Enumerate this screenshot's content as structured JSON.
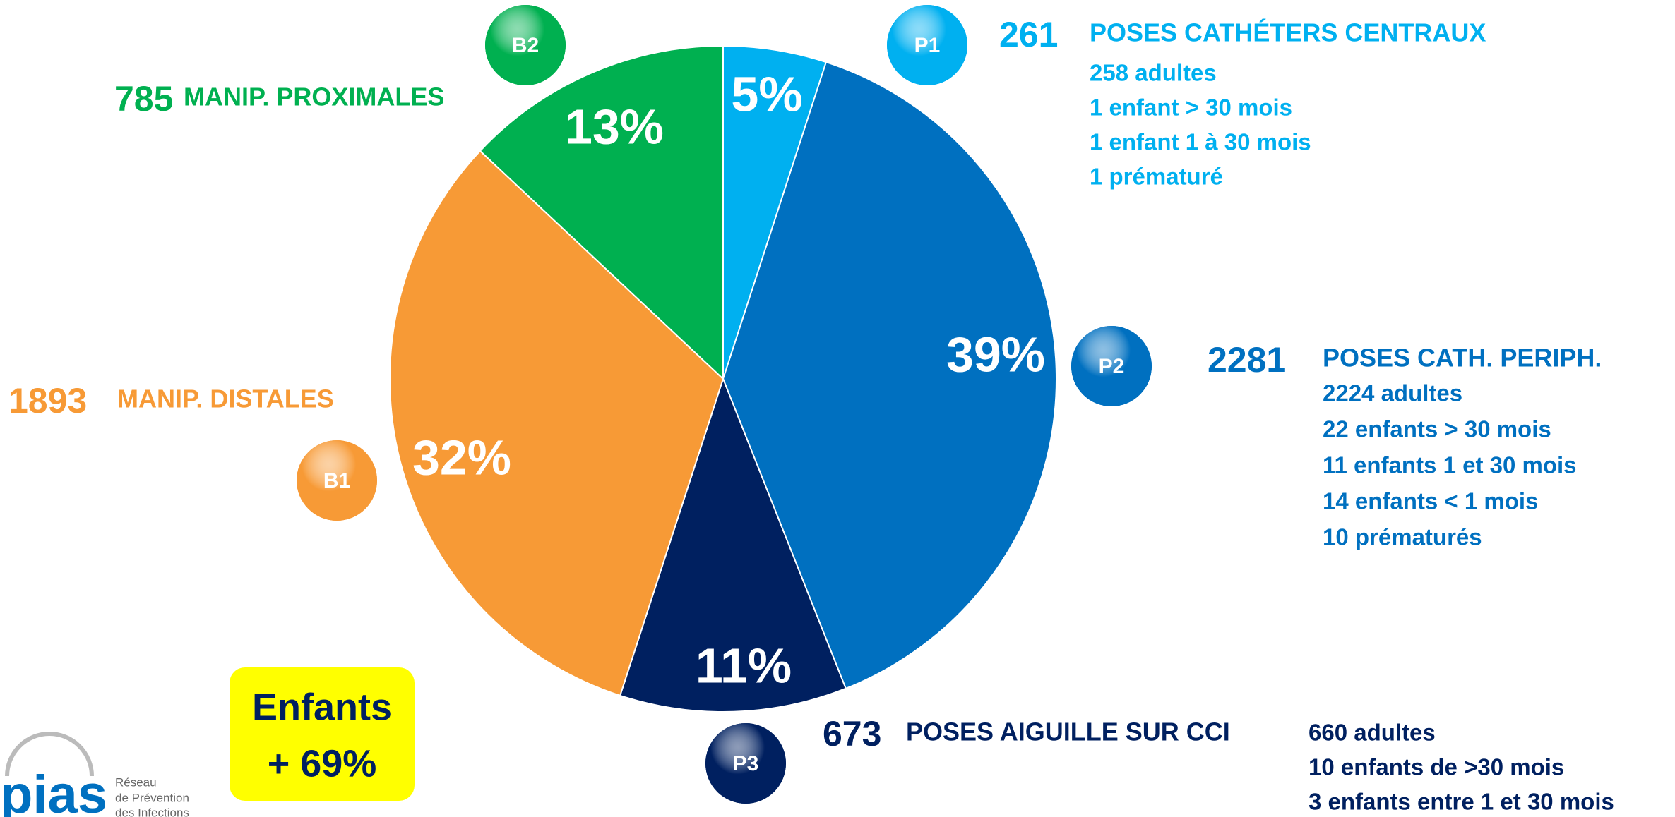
{
  "chart_data": {
    "type": "pie",
    "categories": [
      "P1",
      "P2",
      "P3",
      "B1",
      "B2"
    ],
    "values": [
      5,
      39,
      11,
      32,
      13
    ],
    "value_labels": [
      "5%",
      "39%",
      "11%",
      "32%",
      "13%"
    ],
    "colors": [
      "#00b0f0",
      "#0070c0",
      "#002060",
      "#f79a36",
      "#00b050"
    ]
  },
  "annotations": [
    {
      "count": 261,
      "title": "POSES CATHÉTERS CENTRAUX",
      "details": [
        "258 adultes",
        "1 enfant > 30 mois",
        "1 enfant  1 à 30 mois",
        "1 prématuré"
      ]
    },
    {
      "count": 2281,
      "title": "POSES CATH. PERIPH.",
      "details": [
        "2224 adultes",
        "22 enfants > 30 mois",
        "11 enfants  1 et 30 mois",
        "14 enfants < 1 mois",
        "10 prématurés"
      ]
    },
    {
      "count": 673,
      "title": "POSES AIGUILLE SUR CCI",
      "details": [
        "660 adultes",
        "10 enfants de >30 mois",
        "3 enfants entre 1 et 30 mois"
      ]
    },
    {
      "count": 1893,
      "title": "MANIP. DISTALES",
      "details": []
    },
    {
      "count": 785,
      "title": "MANIP. PROXIMALES",
      "details": []
    }
  ],
  "callout": {
    "lines": [
      "Enfants",
      "+ 69%"
    ]
  },
  "logo": {
    "name": "pias",
    "tagline": [
      "Réseau",
      "de Prévention",
      "des Infections"
    ]
  }
}
